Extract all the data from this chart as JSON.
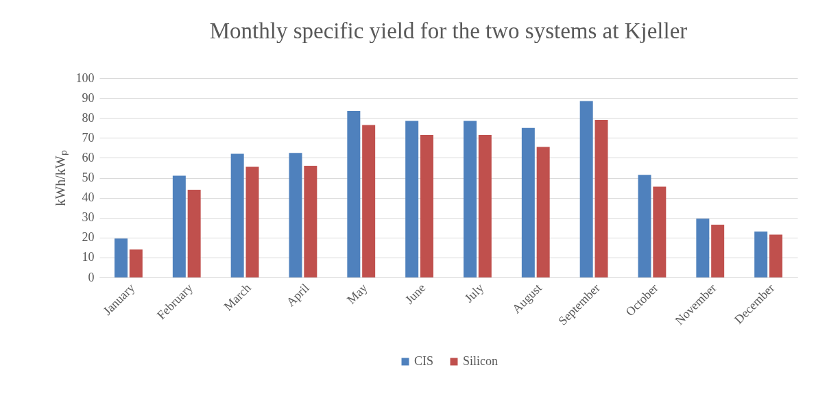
{
  "chart_data": {
    "type": "bar",
    "title": "Monthly specific yield for the two systems at Kjeller",
    "ylabel": "kWh/kWₚ",
    "categories": [
      "January",
      "February",
      "March",
      "April",
      "May",
      "June",
      "July",
      "August",
      "September",
      "October",
      "November",
      "December"
    ],
    "series": [
      {
        "name": "CIS",
        "color": "#4f81bd",
        "values": [
          19.5,
          51,
          62,
          62.5,
          83.5,
          78.5,
          78.5,
          75,
          88.5,
          51.5,
          29.5,
          23
        ]
      },
      {
        "name": "Silicon",
        "color": "#c0504d",
        "values": [
          14,
          44,
          55.5,
          56,
          76.5,
          71.5,
          71.5,
          65.5,
          79,
          45.5,
          26.5,
          21.5
        ]
      }
    ],
    "ylim": [
      0,
      100
    ],
    "yticks": [
      0,
      10,
      20,
      30,
      40,
      50,
      60,
      70,
      80,
      90,
      100
    ],
    "grid": "y",
    "legend": "bottom"
  }
}
